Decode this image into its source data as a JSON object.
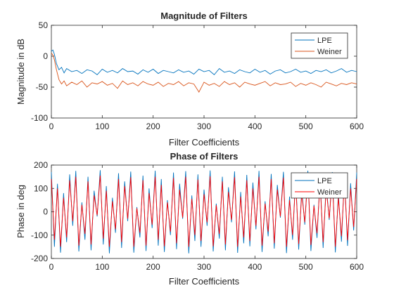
{
  "chart_data": [
    {
      "type": "line",
      "title": "Magnitude of  Filters",
      "xlabel": "Filter Coefficients",
      "ylabel": "Magnitude in dB",
      "xlim": [
        0,
        600
      ],
      "ylim": [
        -100,
        50
      ],
      "xticks": [
        "0",
        "100",
        "200",
        "300",
        "400",
        "500",
        "600"
      ],
      "yticks": [
        "-100",
        "-50",
        "0",
        "50"
      ],
      "grid": false,
      "legend_position": "top-right",
      "series": [
        {
          "name": "LPE",
          "color": "#0072bd",
          "x": [
            0,
            3,
            6,
            10,
            15,
            20,
            25,
            30,
            40,
            50,
            60,
            70,
            80,
            90,
            100,
            110,
            120,
            130,
            140,
            150,
            160,
            170,
            180,
            190,
            200,
            210,
            220,
            230,
            240,
            250,
            260,
            270,
            280,
            290,
            300,
            310,
            320,
            330,
            340,
            350,
            360,
            370,
            380,
            390,
            400,
            410,
            420,
            430,
            440,
            450,
            460,
            470,
            480,
            490,
            500,
            510,
            520,
            530,
            540,
            550,
            560,
            570,
            580,
            590,
            600
          ],
          "y": [
            8,
            10,
            3,
            -12,
            -22,
            -18,
            -27,
            -20,
            -25,
            -23,
            -28,
            -22,
            -24,
            -30,
            -21,
            -26,
            -23,
            -27,
            -20,
            -25,
            -24,
            -29,
            -22,
            -26,
            -21,
            -28,
            -23,
            -25,
            -27,
            -22,
            -26,
            -24,
            -29,
            -21,
            -25,
            -23,
            -30,
            -20,
            -26,
            -24,
            -28,
            -22,
            -25,
            -27,
            -21,
            -26,
            -23,
            -29,
            -24,
            -22,
            -27,
            -25,
            -21,
            -26,
            -24,
            -28,
            -23,
            -25,
            -22,
            -27,
            -24,
            -20,
            -26,
            -23,
            -25
          ]
        },
        {
          "name": "Weiner",
          "color": "#d95319",
          "x": [
            0,
            3,
            6,
            10,
            15,
            20,
            25,
            30,
            40,
            50,
            60,
            70,
            80,
            90,
            100,
            110,
            120,
            130,
            140,
            150,
            160,
            170,
            180,
            190,
            200,
            210,
            220,
            230,
            240,
            250,
            260,
            270,
            280,
            290,
            300,
            310,
            320,
            330,
            340,
            350,
            360,
            370,
            380,
            390,
            400,
            410,
            420,
            430,
            440,
            450,
            460,
            470,
            480,
            490,
            500,
            510,
            520,
            530,
            540,
            550,
            560,
            570,
            580,
            590,
            600
          ],
          "y": [
            5,
            2,
            -6,
            -22,
            -38,
            -45,
            -40,
            -48,
            -42,
            -46,
            -40,
            -50,
            -43,
            -45,
            -41,
            -47,
            -44,
            -52,
            -40,
            -46,
            -43,
            -48,
            -41,
            -45,
            -47,
            -42,
            -49,
            -44,
            -46,
            -41,
            -48,
            -43,
            -45,
            -58,
            -42,
            -47,
            -44,
            -49,
            -41,
            -46,
            -43,
            -50,
            -42,
            -45,
            -47,
            -44,
            -41,
            -48,
            -43,
            -46,
            -45,
            -42,
            -49,
            -44,
            -47,
            -43,
            -46,
            -50,
            -42,
            -45,
            -48,
            -44,
            -46,
            -43,
            -45
          ]
        }
      ]
    },
    {
      "type": "line",
      "title": "Phase of Filters",
      "xlabel": "Filter Coefficients",
      "ylabel": "Phase in deg",
      "xlim": [
        0,
        600
      ],
      "ylim": [
        -200,
        200
      ],
      "xticks": [
        "0",
        "100",
        "200",
        "300",
        "400",
        "500",
        "600"
      ],
      "yticks": [
        "-200",
        "-100",
        "0",
        "100",
        "200"
      ],
      "grid": false,
      "legend_position": "top-right",
      "series": [
        {
          "name": "LPE",
          "color": "#0072bd",
          "x": [
            0,
            6,
            12,
            18,
            24,
            30,
            36,
            42,
            48,
            54,
            60,
            66,
            72,
            78,
            84,
            90,
            96,
            102,
            108,
            114,
            120,
            126,
            132,
            138,
            144,
            150,
            156,
            162,
            168,
            174,
            180,
            186,
            192,
            198,
            204,
            210,
            216,
            222,
            228,
            234,
            240,
            246,
            252,
            258,
            264,
            270,
            276,
            282,
            288,
            294,
            300,
            306,
            312,
            318,
            324,
            330,
            336,
            342,
            348,
            354,
            360,
            366,
            372,
            378,
            384,
            390,
            396,
            402,
            408,
            414,
            420,
            426,
            432,
            438,
            444,
            450,
            456,
            462,
            468,
            474,
            480,
            486,
            492,
            498,
            504,
            510,
            516,
            522,
            528,
            534,
            540,
            546,
            552,
            558,
            564,
            570,
            576,
            582,
            588,
            594,
            600
          ],
          "y": [
            170,
            -150,
            120,
            -175,
            80,
            -130,
            160,
            -60,
            175,
            -170,
            40,
            -120,
            150,
            -165,
            90,
            -20,
            178,
            -140,
            110,
            -178,
            60,
            -90,
            165,
            -155,
            130,
            -40,
            172,
            -175,
            20,
            -110,
            155,
            -168,
            100,
            -70,
            176,
            -145,
            140,
            -172,
            50,
            -100,
            168,
            -160,
            120,
            -30,
            174,
            -178,
            70,
            -125,
            160,
            -150,
            95,
            -60,
            177,
            -170,
            35,
            -115,
            150,
            -165,
            105,
            -45,
            173,
            -176,
            85,
            -135,
            158,
            -148,
            125,
            -75,
            175,
            -172,
            45,
            -105,
            162,
            -158,
            115,
            -25,
            171,
            -177,
            65,
            -120,
            152,
            -162,
            98,
            -55,
            176,
            -168,
            30,
            -112,
            148,
            -155,
            118,
            -35,
            170,
            -174,
            75,
            -128,
            156,
            -146,
            122,
            -80,
            168
          ]
        },
        {
          "name": "Weiner",
          "color": "#ff0000",
          "x": [
            0,
            6,
            12,
            18,
            24,
            30,
            36,
            42,
            48,
            54,
            60,
            66,
            72,
            78,
            84,
            90,
            96,
            102,
            108,
            114,
            120,
            126,
            132,
            138,
            144,
            150,
            156,
            162,
            168,
            174,
            180,
            186,
            192,
            198,
            204,
            210,
            216,
            222,
            228,
            234,
            240,
            246,
            252,
            258,
            264,
            270,
            276,
            282,
            288,
            294,
            300,
            306,
            312,
            318,
            324,
            330,
            336,
            342,
            348,
            354,
            360,
            366,
            372,
            378,
            384,
            390,
            396,
            402,
            408,
            414,
            420,
            426,
            432,
            438,
            444,
            450,
            456,
            462,
            468,
            474,
            480,
            486,
            492,
            498,
            504,
            510,
            516,
            522,
            528,
            534,
            540,
            546,
            552,
            558,
            564,
            570,
            576,
            582,
            588,
            594,
            600
          ],
          "y": [
            140,
            -120,
            100,
            -150,
            60,
            -110,
            135,
            -40,
            150,
            -145,
            30,
            -95,
            130,
            -140,
            70,
            -15,
            155,
            -115,
            90,
            -150,
            45,
            -75,
            140,
            -130,
            110,
            -30,
            148,
            -150,
            15,
            -90,
            135,
            -145,
            80,
            -55,
            150,
            -120,
            115,
            -148,
            40,
            -85,
            145,
            -135,
            95,
            -25,
            150,
            -150,
            55,
            -100,
            138,
            -125,
            75,
            -45,
            152,
            -148,
            28,
            -95,
            130,
            -140,
            85,
            -35,
            148,
            -150,
            65,
            -110,
            135,
            -125,
            100,
            -60,
            150,
            -145,
            35,
            -85,
            140,
            -135,
            95,
            -20,
            146,
            -150,
            50,
            -100,
            130,
            -138,
            78,
            -45,
            150,
            -142,
            25,
            -92,
            125,
            -130,
            98,
            -28,
            145,
            -150,
            60,
            -105,
            132,
            -122,
            100,
            -65,
            140
          ]
        }
      ]
    }
  ]
}
